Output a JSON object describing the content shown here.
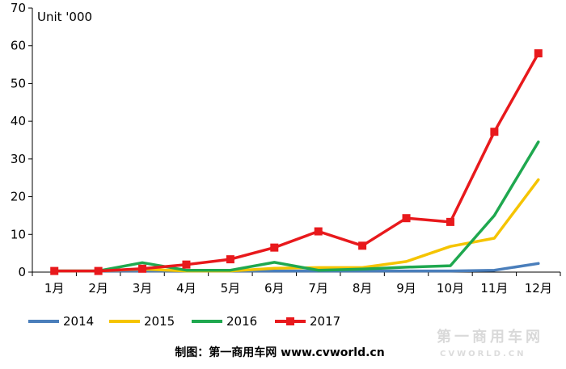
{
  "chart_data": {
    "type": "line",
    "title": "",
    "ylabel": "Unit '000",
    "xlabel": "",
    "categories": [
      "1月",
      "2月",
      "3月",
      "4月",
      "5月",
      "6月",
      "7月",
      "8月",
      "9月",
      "10月",
      "11月",
      "12月"
    ],
    "ylim": [
      0,
      70
    ],
    "yticks": [
      0,
      10,
      20,
      30,
      40,
      50,
      60,
      70
    ],
    "grid": false,
    "legend_position": "bottom",
    "series": [
      {
        "name": "2014",
        "color": "#4a7ebb",
        "marker": "none",
        "values": [
          0.3,
          0.3,
          0.3,
          0.3,
          0.3,
          0.3,
          0.3,
          0.3,
          0.3,
          0.3,
          0.5,
          2.3
        ]
      },
      {
        "name": "2015",
        "color": "#f5c400",
        "marker": "none",
        "values": [
          0.3,
          0.3,
          0.8,
          0.3,
          0.3,
          1.0,
          1.2,
          1.2,
          2.8,
          6.8,
          9.0,
          24.5
        ]
      },
      {
        "name": "2016",
        "color": "#1fa84f",
        "marker": "none",
        "values": [
          0.3,
          0.3,
          2.5,
          0.5,
          0.5,
          2.6,
          0.5,
          0.8,
          1.3,
          1.7,
          15.0,
          34.5
        ]
      },
      {
        "name": "2017",
        "color": "#e8191c",
        "marker": "square",
        "values": [
          0.3,
          0.3,
          0.9,
          2.0,
          3.4,
          6.5,
          10.8,
          7.0,
          14.3,
          13.3,
          37.2,
          58.0
        ]
      }
    ]
  },
  "footer": {
    "credit": "制图：第一商用车网 www.cvworld.cn"
  },
  "watermark": {
    "logo_text": "第一商用车网",
    "logo_sub": "CVWORLD.CN"
  }
}
